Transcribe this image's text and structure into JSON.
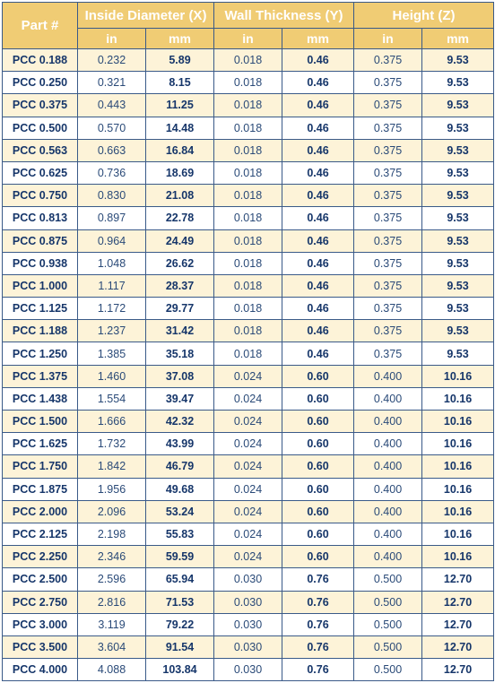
{
  "header": {
    "part_label": "Part #",
    "groups": [
      "Inside Diameter (X)",
      "Wall Thickness (Y)",
      "Height (Z)"
    ],
    "units": [
      "in",
      "mm",
      "in",
      "mm",
      "in",
      "mm"
    ]
  },
  "rows": [
    [
      "PCC 0.188",
      "0.232",
      "5.89",
      "0.018",
      "0.46",
      "0.375",
      "9.53"
    ],
    [
      "PCC 0.250",
      "0.321",
      "8.15",
      "0.018",
      "0.46",
      "0.375",
      "9.53"
    ],
    [
      "PCC 0.375",
      "0.443",
      "11.25",
      "0.018",
      "0.46",
      "0.375",
      "9.53"
    ],
    [
      "PCC 0.500",
      "0.570",
      "14.48",
      "0.018",
      "0.46",
      "0.375",
      "9.53"
    ],
    [
      "PCC 0.563",
      "0.663",
      "16.84",
      "0.018",
      "0.46",
      "0.375",
      "9.53"
    ],
    [
      "PCC 0.625",
      "0.736",
      "18.69",
      "0.018",
      "0.46",
      "0.375",
      "9.53"
    ],
    [
      "PCC 0.750",
      "0.830",
      "21.08",
      "0.018",
      "0.46",
      "0.375",
      "9.53"
    ],
    [
      "PCC 0.813",
      "0.897",
      "22.78",
      "0.018",
      "0.46",
      "0.375",
      "9.53"
    ],
    [
      "PCC 0.875",
      "0.964",
      "24.49",
      "0.018",
      "0.46",
      "0.375",
      "9.53"
    ],
    [
      "PCC 0.938",
      "1.048",
      "26.62",
      "0.018",
      "0.46",
      "0.375",
      "9.53"
    ],
    [
      "PCC 1.000",
      "1.117",
      "28.37",
      "0.018",
      "0.46",
      "0.375",
      "9.53"
    ],
    [
      "PCC 1.125",
      "1.172",
      "29.77",
      "0.018",
      "0.46",
      "0.375",
      "9.53"
    ],
    [
      "PCC 1.188",
      "1.237",
      "31.42",
      "0.018",
      "0.46",
      "0.375",
      "9.53"
    ],
    [
      "PCC 1.250",
      "1.385",
      "35.18",
      "0.018",
      "0.46",
      "0.375",
      "9.53"
    ],
    [
      "PCC 1.375",
      "1.460",
      "37.08",
      "0.024",
      "0.60",
      "0.400",
      "10.16"
    ],
    [
      "PCC 1.438",
      "1.554",
      "39.47",
      "0.024",
      "0.60",
      "0.400",
      "10.16"
    ],
    [
      "PCC 1.500",
      "1.666",
      "42.32",
      "0.024",
      "0.60",
      "0.400",
      "10.16"
    ],
    [
      "PCC 1.625",
      "1.732",
      "43.99",
      "0.024",
      "0.60",
      "0.400",
      "10.16"
    ],
    [
      "PCC 1.750",
      "1.842",
      "46.79",
      "0.024",
      "0.60",
      "0.400",
      "10.16"
    ],
    [
      "PCC 1.875",
      "1.956",
      "49.68",
      "0.024",
      "0.60",
      "0.400",
      "10.16"
    ],
    [
      "PCC 2.000",
      "2.096",
      "53.24",
      "0.024",
      "0.60",
      "0.400",
      "10.16"
    ],
    [
      "PCC 2.125",
      "2.198",
      "55.83",
      "0.024",
      "0.60",
      "0.400",
      "10.16"
    ],
    [
      "PCC 2.250",
      "2.346",
      "59.59",
      "0.024",
      "0.60",
      "0.400",
      "10.16"
    ],
    [
      "PCC 2.500",
      "2.596",
      "65.94",
      "0.030",
      "0.76",
      "0.500",
      "12.70"
    ],
    [
      "PCC 2.750",
      "2.816",
      "71.53",
      "0.030",
      "0.76",
      "0.500",
      "12.70"
    ],
    [
      "PCC 3.000",
      "3.119",
      "79.22",
      "0.030",
      "0.76",
      "0.500",
      "12.70"
    ],
    [
      "PCC 3.500",
      "3.604",
      "91.54",
      "0.030",
      "0.76",
      "0.500",
      "12.70"
    ],
    [
      "PCC 4.000",
      "4.088",
      "103.84",
      "0.030",
      "0.76",
      "0.500",
      "12.70"
    ]
  ]
}
